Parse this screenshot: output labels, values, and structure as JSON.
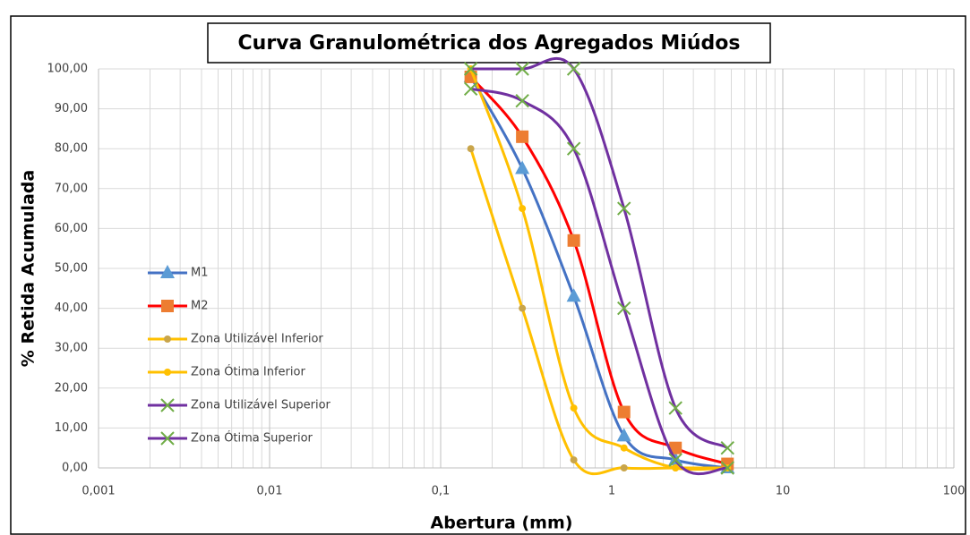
{
  "chart_data": {
    "type": "line",
    "title": "Curva Granulométrica dos Agregados Miúdos",
    "x_label": "Abertura (mm)",
    "y_label": "% Retida Acumulada",
    "x": [
      0.15,
      0.3,
      0.6,
      1.18,
      2.36,
      4.75
    ],
    "log_x": true,
    "xlim": [
      0.001,
      100
    ],
    "xticks": [
      {
        "value": 0.001,
        "label": "0,001"
      },
      {
        "value": 0.01,
        "label": "0,01"
      },
      {
        "value": 0.1,
        "label": "0,1"
      },
      1,
      10,
      100
    ],
    "ylim": [
      0,
      100
    ],
    "yticks": [
      {
        "value": 0,
        "label": "0,00"
      },
      {
        "value": 10,
        "label": "10,00"
      },
      {
        "value": 20,
        "label": "20,00"
      },
      {
        "value": 30,
        "label": "30,00"
      },
      {
        "value": 40,
        "label": "40,00"
      },
      {
        "value": 50,
        "label": "50,00"
      },
      {
        "value": 60,
        "label": "60,00"
      },
      {
        "value": 70,
        "label": "70,00"
      },
      {
        "value": 80,
        "label": "80,00"
      },
      {
        "value": 90,
        "label": "90,00"
      },
      {
        "value": 100,
        "label": "100,00"
      }
    ],
    "grid": true,
    "legend": "left",
    "series": [
      {
        "name": "M1",
        "color": "#4472c4",
        "marker": "triangle",
        "marker_color": "#5b9bd5",
        "values": [
          98,
          75,
          43,
          8,
          2,
          0
        ]
      },
      {
        "name": "M2",
        "color": "#ff0000",
        "marker": "square",
        "marker_color": "#ed7d31",
        "values": [
          98,
          83,
          57,
          14,
          5,
          1
        ]
      },
      {
        "name": "Zona Utilizável Inferior",
        "color": "#ffc000",
        "marker": "circle",
        "marker_color": "#c9a54a",
        "values": [
          80,
          40,
          2,
          0,
          0,
          0
        ]
      },
      {
        "name": "Zona Ótima Inferior",
        "color": "#ffc000",
        "marker": "circle",
        "marker_color": "#ffc000",
        "values": [
          100,
          65,
          15,
          5,
          0,
          0
        ]
      },
      {
        "name": "Zona Utilizável Superior",
        "color": "#7030a0",
        "marker": "x",
        "marker_color": "#70ad47",
        "values": [
          100,
          100,
          100,
          65,
          15,
          5
        ]
      },
      {
        "name": "Zona Ótima Superior",
        "color": "#7030a0",
        "marker": "x",
        "marker_color": "#70ad47",
        "values": [
          95,
          92,
          80,
          40,
          2,
          0
        ]
      }
    ]
  }
}
